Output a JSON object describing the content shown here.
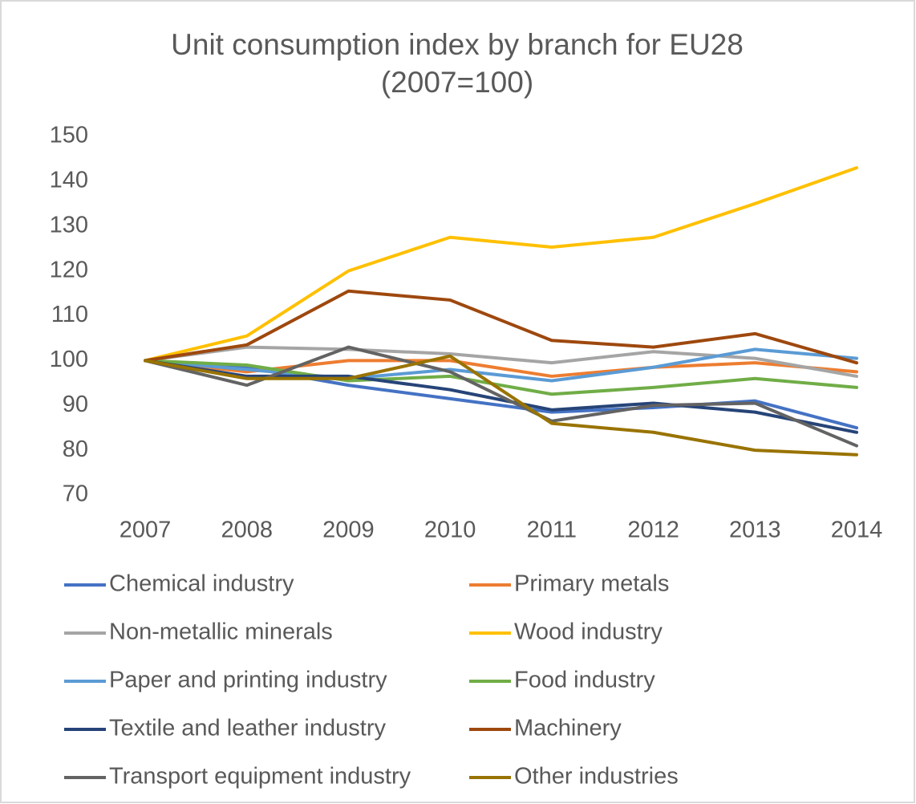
{
  "chart_data": {
    "type": "line",
    "title": "Unit consumption index by branch for EU28",
    "subtitle": "(2007=100)",
    "categories": [
      "2007",
      "2008",
      "2009",
      "2010",
      "2011",
      "2012",
      "2013",
      "2014"
    ],
    "ylim": [
      70,
      150
    ],
    "yticks": [
      70,
      80,
      90,
      100,
      110,
      120,
      130,
      140,
      150
    ],
    "grid": false,
    "legend": "bottom",
    "series": [
      {
        "name": "Chemical industry",
        "color": "#4472c4",
        "values": [
          100,
          98.5,
          94.5,
          91.5,
          88.5,
          89.5,
          91,
          85
        ]
      },
      {
        "name": "Primary metals",
        "color": "#ed7d31",
        "values": [
          100,
          97.5,
          100,
          100,
          96.5,
          98.5,
          99.5,
          97.5
        ]
      },
      {
        "name": "Non-metallic minerals",
        "color": "#a5a5a5",
        "values": [
          100,
          103,
          102.5,
          101.5,
          99.5,
          102,
          100.5,
          96.5
        ]
      },
      {
        "name": "Wood industry",
        "color": "#ffc000",
        "values": [
          100,
          105.5,
          120,
          127.5,
          125.3,
          127.5,
          135,
          143
        ]
      },
      {
        "name": "Paper and printing industry",
        "color": "#5b9bd5",
        "values": [
          100,
          98,
          96,
          98,
          95.5,
          98.5,
          102.5,
          100.5
        ]
      },
      {
        "name": "Food industry",
        "color": "#70ad47",
        "values": [
          100,
          99,
          95.5,
          96.5,
          92.5,
          94,
          96,
          94
        ]
      },
      {
        "name": "Textile and leather industry",
        "color": "#264478",
        "values": [
          100,
          96.5,
          96.5,
          93.5,
          89,
          90.5,
          88.5,
          84
        ]
      },
      {
        "name": "Machinery",
        "color": "#9e480e",
        "values": [
          100,
          103.5,
          115.5,
          113.5,
          104.5,
          103,
          106,
          99.5
        ]
      },
      {
        "name": "Transport equipment industry",
        "color": "#636363",
        "values": [
          100,
          94.5,
          103,
          97.5,
          86.5,
          90,
          90.5,
          81
        ]
      },
      {
        "name": "Other industries",
        "color": "#997300",
        "values": [
          100,
          96,
          96,
          101,
          86,
          84,
          80,
          79
        ]
      }
    ]
  }
}
